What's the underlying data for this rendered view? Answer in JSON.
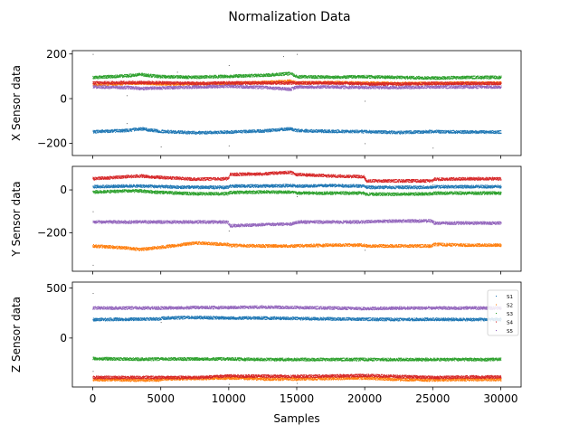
{
  "figure": {
    "title": "Normalization Data"
  },
  "colors": {
    "S1": "#1f77b4",
    "S2": "#ff7f0e",
    "S3": "#2ca02c",
    "S4": "#d62728",
    "S5": "#9467bd"
  },
  "chart_data": [
    {
      "type": "scatter",
      "ylabel": "X Sensor data",
      "xlabel": "",
      "xlim": [
        -1500,
        31500
      ],
      "ylim": [
        -255,
        215
      ],
      "yticks": [
        -200,
        0,
        200
      ],
      "ytick_labels": [
        "−200",
        "0",
        "200"
      ],
      "xticks": [
        0,
        5000,
        10000,
        15000,
        20000,
        25000,
        30000
      ],
      "xtick_labels": [],
      "x": [
        0,
        2500,
        3500,
        5000,
        7500,
        10000,
        12500,
        14500,
        15000,
        17500,
        20000,
        22500,
        25000,
        27500,
        30000
      ],
      "series": [
        {
          "name": "S1",
          "values": [
            -148,
            -143,
            -135,
            -147,
            -153,
            -150,
            -145,
            -135,
            -143,
            -147,
            -148,
            -152,
            -148,
            -150,
            -150
          ]
        },
        {
          "name": "S2",
          "values": [
            62,
            68,
            70,
            66,
            66,
            68,
            72,
            78,
            70,
            72,
            70,
            68,
            68,
            70,
            70
          ]
        },
        {
          "name": "S3",
          "values": [
            95,
            102,
            108,
            98,
            96,
            100,
            104,
            112,
            98,
            96,
            98,
            95,
            92,
            95,
            95
          ]
        },
        {
          "name": "S4",
          "values": [
            70,
            72,
            72,
            71,
            68,
            70,
            70,
            70,
            70,
            70,
            66,
            65,
            68,
            68,
            68
          ]
        },
        {
          "name": "S5",
          "values": [
            52,
            50,
            45,
            48,
            52,
            55,
            50,
            42,
            52,
            52,
            50,
            50,
            52,
            52,
            52
          ]
        }
      ],
      "outliers": [
        [
          0,
          200
        ],
        [
          6200,
          120
        ],
        [
          10000,
          150
        ],
        [
          14000,
          190
        ],
        [
          15000,
          200
        ],
        [
          2500,
          -110
        ],
        [
          5000,
          -215
        ],
        [
          10000,
          -210
        ],
        [
          20000,
          -200
        ],
        [
          25000,
          -220
        ],
        [
          20000,
          -10
        ],
        [
          2500,
          15
        ]
      ]
    },
    {
      "type": "scatter",
      "ylabel": "Y Sensor data",
      "xlabel": "",
      "xlim": [
        -1500,
        31500
      ],
      "ylim": [
        -380,
        110
      ],
      "yticks": [
        -200,
        0
      ],
      "ytick_labels": [
        "−200",
        "0"
      ],
      "xticks": [
        0,
        5000,
        10000,
        15000,
        20000,
        25000,
        30000
      ],
      "xtick_labels": [],
      "x": [
        0,
        2500,
        3500,
        5000,
        7500,
        9900,
        10100,
        12500,
        14500,
        15000,
        17500,
        19900,
        20100,
        22500,
        24900,
        25100,
        27500,
        30000
      ],
      "series": [
        {
          "name": "S1",
          "values": [
            15,
            18,
            18,
            15,
            12,
            12,
            18,
            18,
            20,
            18,
            20,
            18,
            12,
            12,
            12,
            15,
            15,
            15
          ]
        },
        {
          "name": "S2",
          "values": [
            -262,
            -272,
            -278,
            -268,
            -248,
            -255,
            -260,
            -262,
            -262,
            -262,
            -258,
            -258,
            -262,
            -262,
            -262,
            -255,
            -258,
            -258
          ]
        },
        {
          "name": "S3",
          "values": [
            -10,
            -5,
            -5,
            -12,
            -18,
            -18,
            -12,
            -10,
            -10,
            -15,
            -15,
            -15,
            -20,
            -20,
            -18,
            -15,
            -15,
            -15
          ]
        },
        {
          "name": "S4",
          "values": [
            52,
            62,
            65,
            58,
            50,
            52,
            72,
            75,
            82,
            72,
            65,
            62,
            42,
            42,
            42,
            50,
            52,
            52
          ]
        },
        {
          "name": "S5",
          "values": [
            -150,
            -150,
            -150,
            -150,
            -150,
            -150,
            -168,
            -162,
            -160,
            -150,
            -150,
            -150,
            -148,
            -145,
            -145,
            -155,
            -155,
            -155
          ]
        }
      ],
      "outliers": [
        [
          0,
          -100
        ],
        [
          0,
          -350
        ],
        [
          10000,
          -190
        ],
        [
          20000,
          -280
        ],
        [
          15000,
          -30
        ],
        [
          25000,
          25
        ]
      ]
    },
    {
      "type": "scatter",
      "ylabel": "Z Sensor data",
      "xlabel": "Samples",
      "xlim": [
        -1500,
        31500
      ],
      "ylim": [
        -490,
        560
      ],
      "yticks": [
        0,
        500
      ],
      "ytick_labels": [
        "0",
        "500"
      ],
      "xticks": [
        0,
        5000,
        10000,
        15000,
        20000,
        25000,
        30000
      ],
      "xtick_labels": [
        "0",
        "5000",
        "10000",
        "15000",
        "20000",
        "25000",
        "30000"
      ],
      "x": [
        0,
        2500,
        4900,
        5100,
        7500,
        10000,
        12500,
        15000,
        17500,
        20000,
        22500,
        25000,
        27500,
        30000
      ],
      "series": [
        {
          "name": "S1",
          "values": [
            185,
            188,
            190,
            200,
            205,
            200,
            200,
            195,
            192,
            188,
            185,
            188,
            185,
            185
          ]
        },
        {
          "name": "S2",
          "values": [
            -415,
            -420,
            -420,
            -410,
            -405,
            -400,
            -410,
            -410,
            -405,
            -400,
            -415,
            -420,
            -415,
            -415
          ]
        },
        {
          "name": "S3",
          "values": [
            -205,
            -212,
            -212,
            -210,
            -210,
            -210,
            -215,
            -215,
            -215,
            -215,
            -215,
            -215,
            -215,
            -215
          ]
        },
        {
          "name": "S4",
          "values": [
            -395,
            -395,
            -395,
            -395,
            -395,
            -380,
            -382,
            -385,
            -380,
            -375,
            -385,
            -395,
            -390,
            -390
          ]
        },
        {
          "name": "S5",
          "values": [
            300,
            300,
            300,
            300,
            305,
            305,
            310,
            305,
            300,
            295,
            300,
            300,
            300,
            300
          ]
        }
      ],
      "outliers": [
        [
          0,
          450
        ],
        [
          0,
          -330
        ],
        [
          10000,
          -460
        ],
        [
          15000,
          -450
        ],
        [
          20000,
          -370
        ],
        [
          5000,
          160
        ]
      ]
    }
  ],
  "legend": {
    "placement": "right",
    "entries": [
      "S1",
      "S2",
      "S3",
      "S4",
      "S5"
    ]
  }
}
